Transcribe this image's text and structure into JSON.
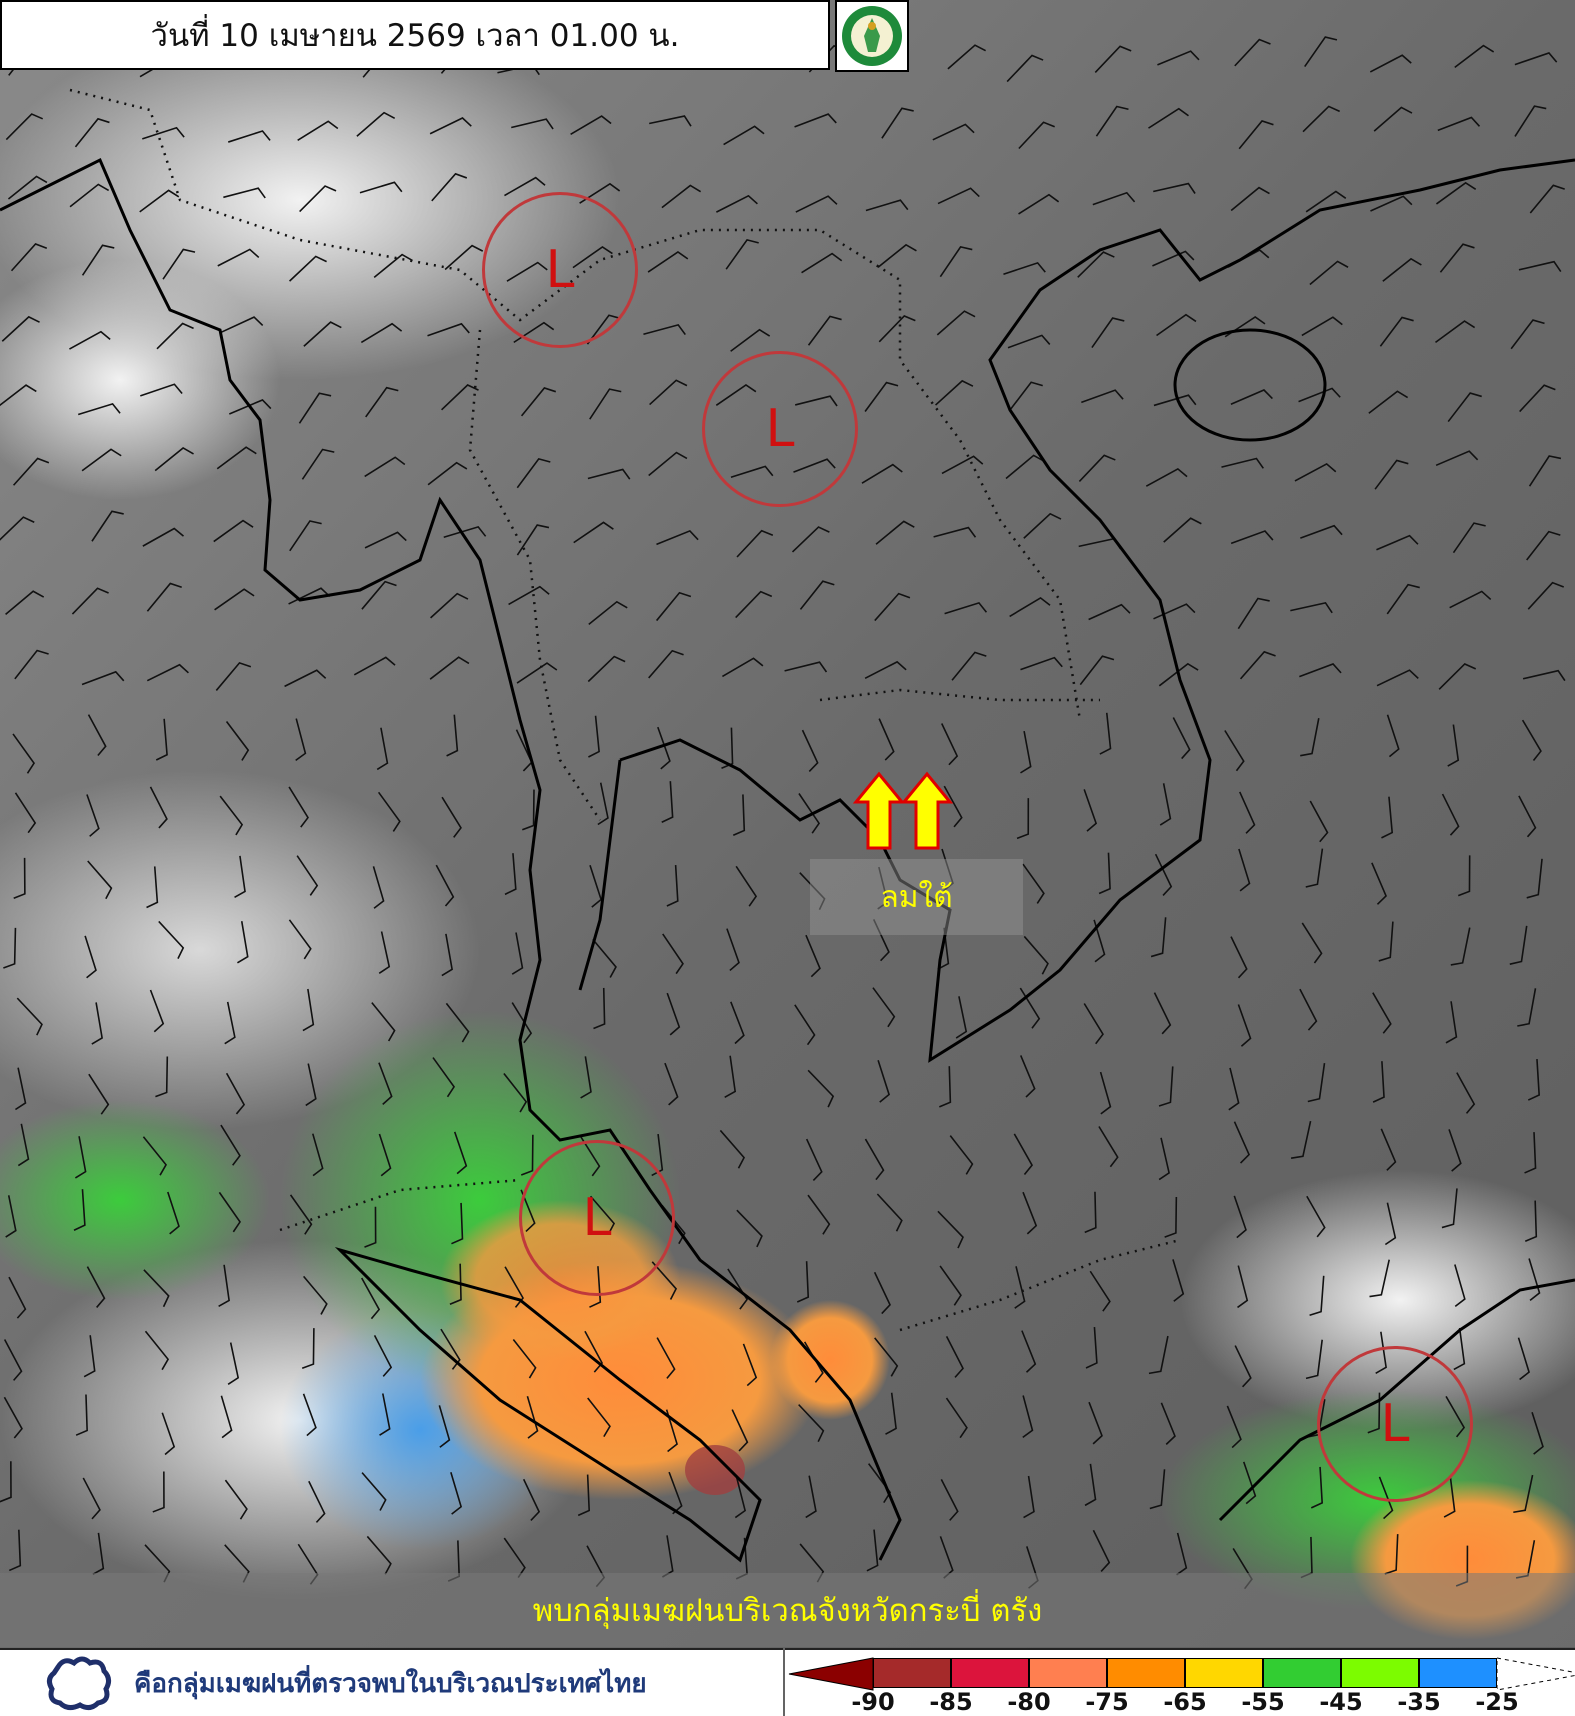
{
  "header": {
    "title": "วันที่ 10 เมษายน 2569 เวลา 01.00 น.",
    "logo_icon": "tmd-logo-icon"
  },
  "map": {
    "lows": [
      {
        "label": "L"
      },
      {
        "label": "L"
      },
      {
        "label": "L"
      },
      {
        "label": "L"
      }
    ],
    "wind_label": "ลมใต้",
    "wind_arrow_color": "#ffff00",
    "low_circle_color": "#c0393b"
  },
  "banner": {
    "text": "พบกลุ่มเมฆฝนบริเวณจังหวัดกระบี่ ตรัง"
  },
  "legend": {
    "cloud_icon": "cloud-outline-icon",
    "cloud_text": "คือกลุ่มเมฆฝนที่ตรวจพบในบริเวณประเทศไทย",
    "colorbar": {
      "colors": [
        "#8b0000",
        "#a52a2a",
        "#dc143c",
        "#ff7f50",
        "#ff8c00",
        "#ffd700",
        "#32cd32",
        "#7cfc00",
        "#1e90ff",
        "#ffffff"
      ],
      "ticks": [
        "-90",
        "-85",
        "-80",
        "-75",
        "-65",
        "-55",
        "-45",
        "-35",
        "-25"
      ]
    }
  }
}
